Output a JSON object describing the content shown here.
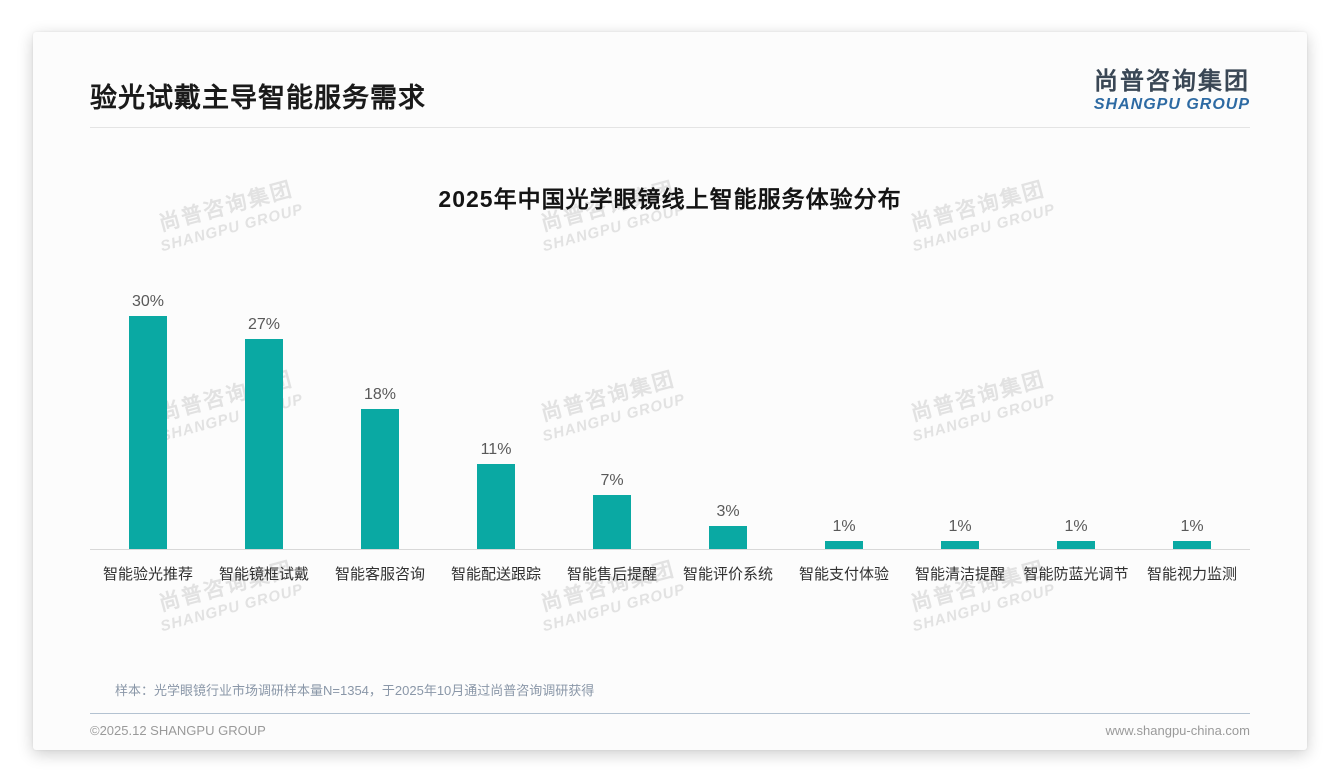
{
  "page": {
    "header": {
      "title": "验光试戴主导智能服务需求",
      "logo": {
        "cn": "尚普咨询集团",
        "en": "SHANGPU GROUP"
      }
    },
    "footer": {
      "note": "样本：光学眼镜行业市场调研样本量N=1354，于2025年10月通过尚普咨询调研获得",
      "copyright": "©2025.12 SHANGPU GROUP",
      "website": "www.shangpu-china.com"
    },
    "watermark": {
      "cn": "尚普咨询集团",
      "en": "SHANGPU GROUP"
    },
    "colors": {
      "bar": "#0AA9A3",
      "logo_cn": "#3A4755",
      "logo_en": "#2D6AA3",
      "title": "#1A1A1A",
      "note": "#8A97A8",
      "watermark": "#E2E2E2"
    }
  },
  "chart_data": {
    "type": "bar",
    "title": "2025年中国光学眼镜线上智能服务体验分布",
    "categories": [
      "智能验光推荐",
      "智能镜框试戴",
      "智能客服咨询",
      "智能配送跟踪",
      "智能售后提醒",
      "智能评价系统",
      "智能支付体验",
      "智能清洁提醒",
      "智能防蓝光调节",
      "智能视力监测"
    ],
    "values": [
      30,
      27,
      18,
      11,
      7,
      3,
      1,
      1,
      1,
      1
    ],
    "value_labels": [
      "30%",
      "27%",
      "18%",
      "11%",
      "7%",
      "3%",
      "1%",
      "1%",
      "1%",
      "1%"
    ],
    "unit": "%",
    "bar_color": "#0AA9A3",
    "xlabel": "",
    "ylabel": "",
    "ylim": [
      0,
      33
    ],
    "grid": false,
    "legend": "none",
    "value_label_position": "above-bar"
  }
}
